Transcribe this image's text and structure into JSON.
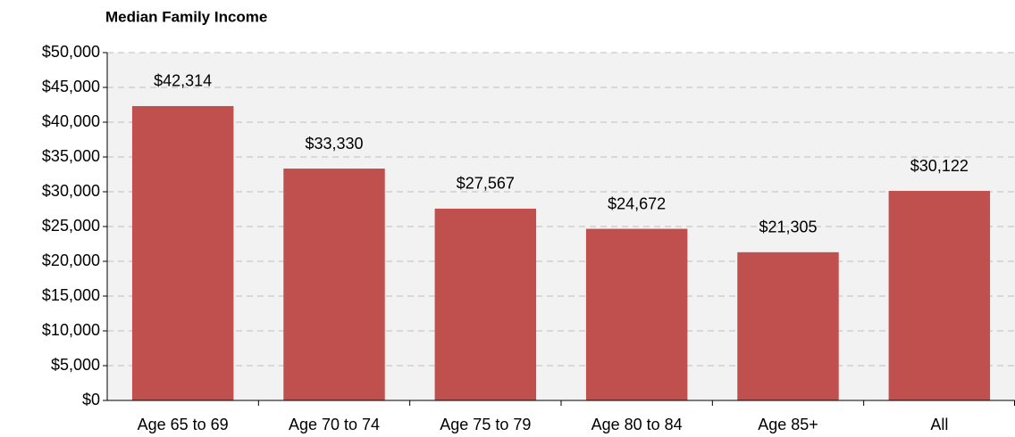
{
  "chart_data": {
    "type": "bar",
    "title": "Median Family Income",
    "categories": [
      "Age 65 to 69",
      "Age 70 to 74",
      "Age 75 to 79",
      "Age 80 to 84",
      "Age 85+",
      "All"
    ],
    "values": [
      42314,
      33330,
      27567,
      24672,
      21305,
      30122
    ],
    "value_labels": [
      "$42,314",
      "$33,330",
      "$27,567",
      "$24,672",
      "$21,305",
      "$30,122"
    ],
    "color": "#c0504d",
    "ylim": [
      0,
      50000
    ],
    "yticks": [
      {
        "value": 0,
        "label": "$0"
      },
      {
        "value": 5000,
        "label": "$5,000"
      },
      {
        "value": 10000,
        "label": "$10,000"
      },
      {
        "value": 15000,
        "label": "$15,000"
      },
      {
        "value": 20000,
        "label": "$20,000"
      },
      {
        "value": 25000,
        "label": "$25,000"
      },
      {
        "value": 30000,
        "label": "$30,000"
      },
      {
        "value": 35000,
        "label": "$35,000"
      },
      {
        "value": 40000,
        "label": "$40,000"
      },
      {
        "value": 45000,
        "label": "$45,000"
      },
      {
        "value": 50000,
        "label": "$50,000"
      }
    ],
    "grid": true
  }
}
